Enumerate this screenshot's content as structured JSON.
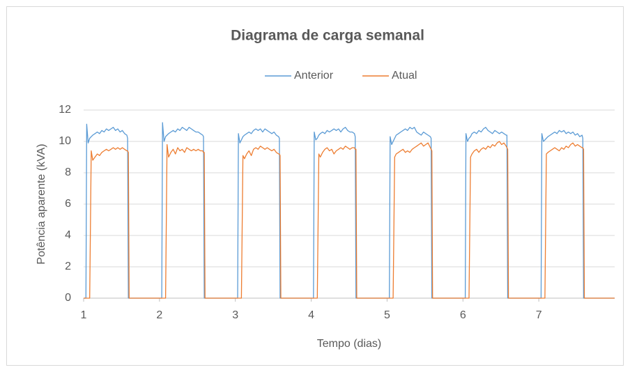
{
  "chart_data": {
    "type": "line",
    "title": "Diagrama de carga semanal",
    "x_label": "Tempo (dias)",
    "y_label": "Potência aparente (kVA)",
    "x": [
      1,
      1.03,
      1.04,
      1.06,
      1.08,
      1.1,
      1.12,
      1.15,
      1.18,
      1.21,
      1.24,
      1.27,
      1.3,
      1.33,
      1.36,
      1.39,
      1.42,
      1.45,
      1.48,
      1.51,
      1.54,
      1.57,
      1.58,
      1.59,
      1.6,
      2,
      2.03,
      2.04,
      2.06,
      2.08,
      2.1,
      2.12,
      2.15,
      2.18,
      2.21,
      2.24,
      2.27,
      2.3,
      2.33,
      2.36,
      2.39,
      2.42,
      2.45,
      2.48,
      2.51,
      2.54,
      2.57,
      2.58,
      2.59,
      2.6,
      3,
      3.03,
      3.04,
      3.06,
      3.08,
      3.1,
      3.12,
      3.15,
      3.18,
      3.21,
      3.24,
      3.27,
      3.3,
      3.33,
      3.36,
      3.39,
      3.42,
      3.45,
      3.48,
      3.51,
      3.54,
      3.57,
      3.58,
      3.59,
      3.6,
      4,
      4.03,
      4.04,
      4.06,
      4.08,
      4.1,
      4.12,
      4.15,
      4.18,
      4.21,
      4.24,
      4.27,
      4.3,
      4.33,
      4.36,
      4.39,
      4.42,
      4.45,
      4.48,
      4.51,
      4.54,
      4.57,
      4.58,
      4.59,
      4.6,
      5,
      5.03,
      5.04,
      5.06,
      5.08,
      5.1,
      5.12,
      5.15,
      5.18,
      5.21,
      5.24,
      5.27,
      5.3,
      5.33,
      5.36,
      5.39,
      5.42,
      5.45,
      5.48,
      5.51,
      5.54,
      5.57,
      5.58,
      5.59,
      5.6,
      6,
      6.03,
      6.04,
      6.06,
      6.08,
      6.1,
      6.12,
      6.15,
      6.18,
      6.21,
      6.24,
      6.27,
      6.3,
      6.33,
      6.36,
      6.39,
      6.42,
      6.45,
      6.48,
      6.51,
      6.54,
      6.57,
      6.58,
      6.59,
      6.6,
      7,
      7.03,
      7.04,
      7.06,
      7.08,
      7.1,
      7.12,
      7.15,
      7.18,
      7.21,
      7.24,
      7.27,
      7.3,
      7.33,
      7.36,
      7.39,
      7.42,
      7.45,
      7.48,
      7.51,
      7.54,
      7.57,
      7.58,
      7.59,
      7.6,
      8
    ],
    "series": [
      {
        "name": "Anterior",
        "color": "#5b9bd5",
        "values": [
          0,
          0,
          11.1,
          9.9,
          10.2,
          10.3,
          10.4,
          10.5,
          10.6,
          10.5,
          10.7,
          10.6,
          10.8,
          10.7,
          10.8,
          10.9,
          10.7,
          10.8,
          10.6,
          10.7,
          10.5,
          10.4,
          10.2,
          0,
          0,
          0,
          0,
          11.2,
          10.0,
          10.3,
          10.4,
          10.5,
          10.6,
          10.7,
          10.6,
          10.8,
          10.7,
          10.9,
          10.8,
          10.7,
          10.9,
          10.8,
          10.7,
          10.6,
          10.6,
          10.5,
          10.4,
          10.3,
          0,
          0,
          0,
          0,
          10.5,
          9.9,
          10.1,
          10.3,
          10.4,
          10.5,
          10.6,
          10.5,
          10.7,
          10.8,
          10.7,
          10.8,
          10.6,
          10.8,
          10.7,
          10.6,
          10.5,
          10.6,
          10.4,
          10.3,
          10.2,
          0,
          0,
          0,
          0,
          10.6,
          10.1,
          10.2,
          10.4,
          10.5,
          10.6,
          10.5,
          10.7,
          10.6,
          10.7,
          10.8,
          10.7,
          10.8,
          10.6,
          10.8,
          10.9,
          10.7,
          10.6,
          10.6,
          10.5,
          10.3,
          0,
          0,
          0,
          0,
          10.3,
          9.8,
          10.0,
          10.2,
          10.4,
          10.5,
          10.6,
          10.7,
          10.8,
          10.7,
          10.9,
          10.8,
          10.9,
          10.6,
          10.5,
          10.4,
          10.6,
          10.5,
          10.4,
          10.3,
          10.2,
          0,
          0,
          0,
          0,
          10.5,
          10.0,
          10.2,
          10.3,
          10.5,
          10.6,
          10.5,
          10.7,
          10.6,
          10.8,
          10.9,
          10.7,
          10.6,
          10.5,
          10.7,
          10.6,
          10.5,
          10.6,
          10.5,
          10.4,
          10.4,
          0,
          0,
          0,
          0,
          10.5,
          10.0,
          10.1,
          10.2,
          10.3,
          10.4,
          10.5,
          10.6,
          10.5,
          10.7,
          10.6,
          10.7,
          10.5,
          10.6,
          10.5,
          10.6,
          10.4,
          10.5,
          10.3,
          10.4,
          10.2,
          0,
          0,
          0
        ]
      },
      {
        "name": "Atual",
        "color": "#ed7d31",
        "values": [
          0,
          0,
          0,
          0,
          0,
          9.4,
          8.8,
          9.0,
          9.2,
          9.1,
          9.3,
          9.4,
          9.5,
          9.4,
          9.5,
          9.6,
          9.5,
          9.6,
          9.5,
          9.6,
          9.5,
          9.4,
          9.4,
          9.3,
          0,
          0,
          0,
          0,
          0,
          0,
          9.8,
          9.0,
          9.3,
          9.5,
          9.2,
          9.6,
          9.4,
          9.5,
          9.3,
          9.6,
          9.5,
          9.4,
          9.5,
          9.4,
          9.5,
          9.4,
          9.4,
          9.3,
          9.3,
          0,
          0,
          0,
          0,
          0,
          0,
          9.1,
          8.9,
          9.2,
          9.4,
          9.1,
          9.5,
          9.6,
          9.5,
          9.7,
          9.6,
          9.5,
          9.6,
          9.5,
          9.4,
          9.5,
          9.3,
          9.2,
          9.2,
          9.1,
          0,
          0,
          0,
          0,
          0,
          0,
          9.2,
          9.0,
          9.3,
          9.5,
          9.6,
          9.4,
          9.5,
          9.2,
          9.4,
          9.5,
          9.6,
          9.5,
          9.7,
          9.6,
          9.5,
          9.6,
          9.6,
          9.5,
          9.5,
          0,
          0,
          0,
          0,
          0,
          0,
          9.0,
          9.2,
          9.3,
          9.4,
          9.5,
          9.3,
          9.4,
          9.3,
          9.5,
          9.6,
          9.7,
          9.8,
          9.9,
          9.7,
          9.8,
          9.9,
          9.6,
          9.5,
          9.4,
          0,
          0,
          0,
          0,
          0,
          0,
          9.0,
          9.2,
          9.4,
          9.5,
          9.3,
          9.5,
          9.6,
          9.5,
          9.7,
          9.6,
          9.8,
          9.7,
          9.9,
          10.0,
          9.8,
          9.9,
          9.7,
          9.6,
          9.5,
          0,
          0,
          0,
          0,
          0,
          0,
          9.2,
          9.3,
          9.4,
          9.5,
          9.6,
          9.5,
          9.4,
          9.6,
          9.5,
          9.7,
          9.6,
          9.8,
          9.9,
          9.7,
          9.8,
          9.7,
          9.6,
          9.6,
          9.5,
          0,
          0
        ]
      }
    ],
    "xlim": [
      1,
      8
    ],
    "xticks": [
      1,
      2,
      3,
      4,
      5,
      6,
      7
    ],
    "ylim": [
      0,
      12
    ],
    "yticks": [
      0,
      2,
      4,
      6,
      8,
      10,
      12
    ],
    "grid": true,
    "legend": "top"
  }
}
